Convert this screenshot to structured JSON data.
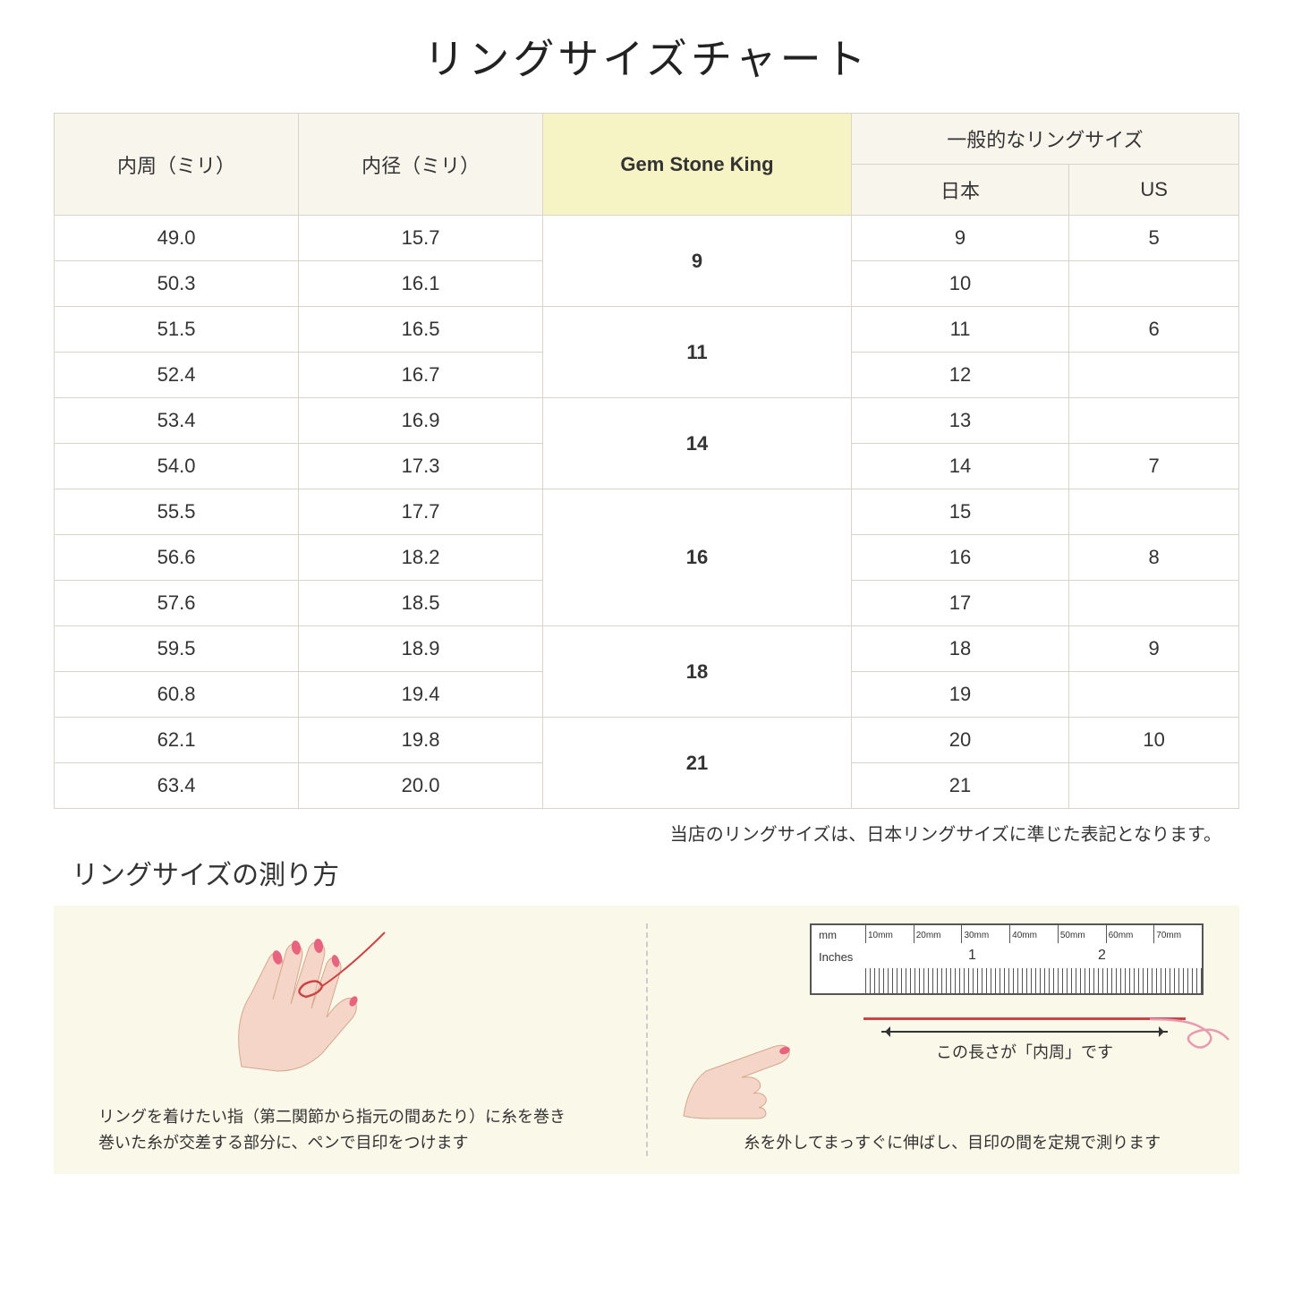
{
  "title": "リングサイズチャート",
  "headers": {
    "circumference": "内周（ミリ）",
    "diameter": "内径（ミリ）",
    "gsk": "Gem Stone King",
    "common": "一般的なリングサイズ",
    "japan": "日本",
    "us": "US"
  },
  "rows": [
    {
      "circ": "49.0",
      "dia": "15.7",
      "gsk": "9",
      "gskSpan": 2,
      "jp": "9",
      "us": "5"
    },
    {
      "circ": "50.3",
      "dia": "16.1",
      "jp": "10",
      "us": ""
    },
    {
      "circ": "51.5",
      "dia": "16.5",
      "gsk": "11",
      "gskSpan": 2,
      "jp": "11",
      "us": "6"
    },
    {
      "circ": "52.4",
      "dia": "16.7",
      "jp": "12",
      "us": ""
    },
    {
      "circ": "53.4",
      "dia": "16.9",
      "gsk": "14",
      "gskSpan": 2,
      "jp": "13",
      "us": ""
    },
    {
      "circ": "54.0",
      "dia": "17.3",
      "jp": "14",
      "us": "7"
    },
    {
      "circ": "55.5",
      "dia": "17.7",
      "gsk": "16",
      "gskSpan": 3,
      "jp": "15",
      "us": ""
    },
    {
      "circ": "56.6",
      "dia": "18.2",
      "jp": "16",
      "us": "8"
    },
    {
      "circ": "57.6",
      "dia": "18.5",
      "jp": "17",
      "us": ""
    },
    {
      "circ": "59.5",
      "dia": "18.9",
      "gsk": "18",
      "gskSpan": 2,
      "jp": "18",
      "us": "9"
    },
    {
      "circ": "60.8",
      "dia": "19.4",
      "jp": "19",
      "us": ""
    },
    {
      "circ": "62.1",
      "dia": "19.8",
      "gsk": "21",
      "gskSpan": 2,
      "jp": "20",
      "us": "10"
    },
    {
      "circ": "63.4",
      "dia": "20.0",
      "jp": "21",
      "us": ""
    }
  ],
  "note": "当店のリングサイズは、日本リングサイズに準じた表記となります。",
  "measureTitle": "リングサイズの測り方",
  "instruction1a": "リングを着けたい指（第二関節から指元の間あたり）に糸を巻き",
  "instruction1b": "巻いた糸が交差する部分に、ペンで目印をつけます",
  "instruction2": "糸を外してまっすぐに伸ばし、目印の間を定規で測ります",
  "ruler": {
    "mm": "mm",
    "inches": "Inches",
    "mmLabels": [
      "10mm",
      "20mm",
      "30mm",
      "40mm",
      "50mm",
      "60mm",
      "70mm"
    ],
    "inLabels": [
      "1",
      "2"
    ]
  },
  "arrowLabel": "この長さが「内周」です",
  "colors": {
    "headerBg": "#f7f5ec",
    "gskBg": "#f6f3c4",
    "border": "#d8d4c8",
    "instBg": "#faf8e8",
    "skin": "#f5d5c8",
    "nail": "#e8637e",
    "thread": "#c44"
  }
}
